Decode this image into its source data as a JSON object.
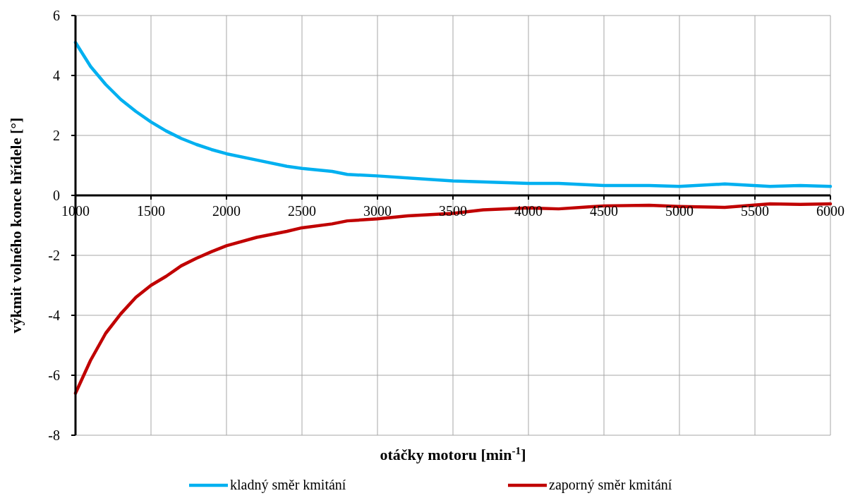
{
  "chart_data": {
    "type": "line",
    "xlabel": "otáčky motoru [min$^{-1}$]",
    "ylabel": "výkmit volného konce hřídele [°]",
    "xlim": [
      1000,
      6000
    ],
    "xticks": [
      1000,
      1500,
      2000,
      2500,
      3000,
      3500,
      4000,
      4500,
      5000,
      5500,
      6000
    ],
    "ylim": [
      -8,
      6
    ],
    "yticks": [
      -8,
      -6,
      -4,
      -2,
      0,
      2,
      4,
      6
    ],
    "grid": true,
    "legend": "bottom",
    "marker": "none",
    "line_style": "solid",
    "series": [
      {
        "name": "kladný směr kmitání",
        "color": "#00b0f0",
        "x": [
          1000,
          1100,
          1200,
          1300,
          1400,
          1500,
          1600,
          1700,
          1800,
          1900,
          2000,
          2200,
          2400,
          2500,
          2700,
          2800,
          3000,
          3500,
          4000,
          4200,
          4500,
          4800,
          5000,
          5300,
          5600,
          5800,
          6000
        ],
        "values": [
          5.1,
          4.3,
          3.7,
          3.2,
          2.8,
          2.45,
          2.15,
          1.9,
          1.7,
          1.53,
          1.39,
          1.18,
          0.97,
          0.9,
          0.8,
          0.7,
          0.65,
          0.48,
          0.4,
          0.4,
          0.33,
          0.33,
          0.3,
          0.38,
          0.3,
          0.33,
          0.3
        ]
      },
      {
        "name": "zaporný směr kmitání",
        "color": "#c00000",
        "x": [
          1000,
          1100,
          1200,
          1300,
          1400,
          1500,
          1600,
          1700,
          1800,
          1900,
          2000,
          2200,
          2400,
          2500,
          2700,
          2800,
          3000,
          3200,
          3500,
          3700,
          4000,
          4200,
          4400,
          4500,
          4800,
          5000,
          5300,
          5600,
          5800,
          6000
        ],
        "values": [
          -6.6,
          -5.5,
          -4.6,
          -3.95,
          -3.4,
          -3.0,
          -2.7,
          -2.35,
          -2.1,
          -1.88,
          -1.68,
          -1.4,
          -1.2,
          -1.08,
          -0.95,
          -0.85,
          -0.78,
          -0.68,
          -0.6,
          -0.48,
          -0.42,
          -0.45,
          -0.38,
          -0.35,
          -0.33,
          -0.37,
          -0.4,
          -0.28,
          -0.3,
          -0.28
        ]
      }
    ]
  }
}
